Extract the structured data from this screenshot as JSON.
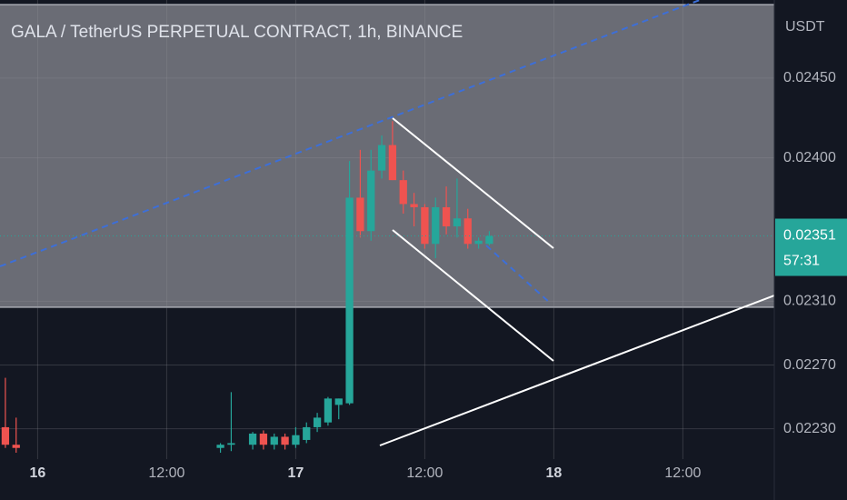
{
  "chart_data": {
    "type": "candlestick",
    "title": "GALA / TetherUS PERPETUAL CONTRACT, 1h, BINANCE",
    "ylabel": "USDT",
    "x": [
      -3,
      -2,
      17,
      18,
      20,
      21,
      22,
      23,
      24,
      25,
      26,
      27,
      28,
      29,
      30,
      31,
      32,
      33,
      34,
      35,
      36,
      37,
      38,
      39,
      40,
      41,
      42
    ],
    "open": [
      0.02231,
      0.0222,
      0.02218,
      0.0222,
      0.0222,
      0.02227,
      0.0222,
      0.02225,
      0.0222,
      0.02223,
      0.02231,
      0.02234,
      0.02245,
      0.02246,
      0.02375,
      0.02354,
      0.02392,
      0.02408,
      0.02386,
      0.02371,
      0.02369,
      0.02346,
      0.02369,
      0.02357,
      0.02362,
      0.02346,
      0.02346
    ],
    "high": [
      0.02262,
      0.02237,
      0.02221,
      0.02253,
      0.02228,
      0.02229,
      0.02227,
      0.02227,
      0.02231,
      0.02234,
      0.0224,
      0.0225,
      0.02249,
      0.02398,
      0.02405,
      0.02405,
      0.02414,
      0.02423,
      0.02392,
      0.02378,
      0.02371,
      0.02375,
      0.02382,
      0.02387,
      0.02368,
      0.0235,
      0.02354
    ],
    "low": [
      0.02218,
      0.02215,
      0.02215,
      0.02216,
      0.02217,
      0.02217,
      0.02217,
      0.02217,
      0.02218,
      0.02221,
      0.02228,
      0.02232,
      0.02236,
      0.02245,
      0.0235,
      0.02348,
      0.02387,
      0.02386,
      0.02365,
      0.02357,
      0.02343,
      0.02337,
      0.02352,
      0.0235,
      0.02343,
      0.02343,
      0.02345
    ],
    "close": [
      0.0222,
      0.02218,
      0.0222,
      0.02221,
      0.02227,
      0.0222,
      0.02225,
      0.0222,
      0.02226,
      0.02231,
      0.02237,
      0.02249,
      0.02249,
      0.02375,
      0.02354,
      0.02392,
      0.02408,
      0.02386,
      0.02371,
      0.02369,
      0.02346,
      0.02369,
      0.02357,
      0.02362,
      0.02346,
      0.02348,
      0.02351
    ],
    "up_color": "#26a69a",
    "down_color": "#ef5350",
    "xlim": [
      -3.5,
      68.5
    ],
    "xticks": [
      {
        "value": 0,
        "label": "16"
      },
      {
        "value": 12,
        "label": "12:00"
      },
      {
        "value": 24,
        "label": "17"
      },
      {
        "value": 36,
        "label": "12:00"
      },
      {
        "value": 48,
        "label": "18"
      },
      {
        "value": 60,
        "label": "12:00"
      }
    ],
    "ylim": [
      0.02211,
      0.02499
    ],
    "yticks": [
      {
        "value": 0.0245,
        "label": "0.02450"
      },
      {
        "value": 0.024,
        "label": "0.02400"
      },
      {
        "value": 0.0231,
        "label": "0.02310"
      },
      {
        "value": 0.0227,
        "label": "0.02270"
      },
      {
        "value": 0.0223,
        "label": "0.02230"
      }
    ],
    "grid": true,
    "last_price": {
      "value": 0.02351,
      "label": "0.02351"
    },
    "countdown": "57:31"
  }
}
